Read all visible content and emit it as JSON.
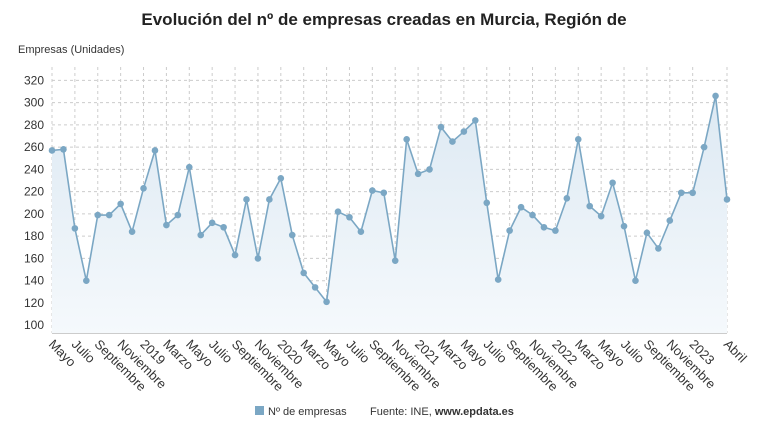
{
  "chart_data": {
    "type": "line",
    "title": "Evolución del nº de empresas creadas en Murcia, Región de",
    "y_label": "Empresas (Unidades)",
    "source": {
      "prefix": "Fuente: INE,",
      "site": "www.epdata.es"
    },
    "categories": [
      "Mayo",
      null,
      "Julio",
      null,
      "Septiembre",
      null,
      "Noviembre",
      null,
      "2019",
      null,
      "Marzo",
      null,
      "Mayo",
      null,
      "Julio",
      null,
      "Septiembre",
      null,
      "Noviembre",
      null,
      "2020",
      null,
      "Marzo",
      null,
      "Mayo",
      null,
      "Julio",
      null,
      "Septiembre",
      null,
      "Noviembre",
      null,
      "2021",
      null,
      "Marzo",
      null,
      "Mayo",
      null,
      "Julio",
      null,
      "Septiembre",
      null,
      "Noviembre",
      null,
      "2022",
      null,
      "Marzo",
      null,
      "Mayo",
      null,
      "Julio",
      null,
      "Septiembre",
      null,
      "Noviembre",
      null,
      "2023",
      null,
      null,
      "Abril"
    ],
    "series": [
      {
        "name": "Nº de empresas",
        "color": "#7ba7c4",
        "values": [
          257,
          258,
          187,
          140,
          199,
          199,
          209,
          184,
          223,
          257,
          190,
          199,
          242,
          181,
          192,
          188,
          163,
          213,
          160,
          213,
          232,
          181,
          147,
          134,
          121,
          202,
          197,
          184,
          221,
          219,
          158,
          267,
          236,
          240,
          278,
          265,
          274,
          284,
          210,
          141,
          185,
          206,
          199,
          188,
          185,
          214,
          267,
          207,
          198,
          228,
          189,
          140,
          183,
          169,
          194,
          219,
          219,
          260,
          306,
          213
        ]
      }
    ],
    "ylim": [
      93,
      332
    ],
    "yticks": [
      100,
      120,
      140,
      160,
      180,
      200,
      220,
      240,
      260,
      280,
      300,
      320
    ],
    "grid": true
  }
}
